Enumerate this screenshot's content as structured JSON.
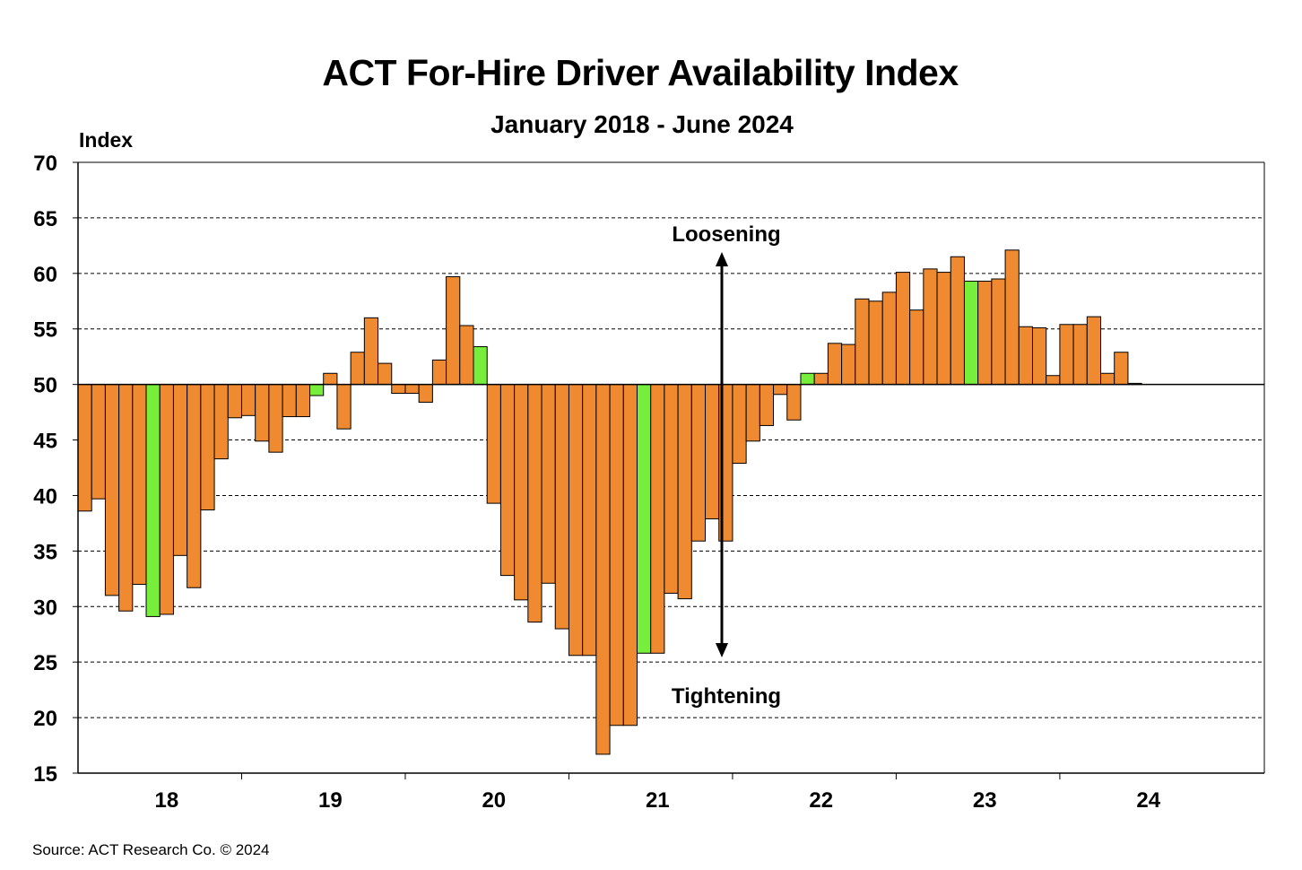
{
  "chart_data": {
    "type": "bar",
    "title": "ACT For-Hire Driver Availability Index",
    "subtitle": "January 2018 - June 2024",
    "ylabel": "Index",
    "ylim": [
      15,
      70
    ],
    "yticks": [
      15,
      20,
      25,
      30,
      35,
      40,
      45,
      50,
      55,
      60,
      65,
      70
    ],
    "baseline": 50,
    "xticks": [
      "18",
      "19",
      "20",
      "21",
      "22",
      "23",
      "24"
    ],
    "grid": true,
    "values": [
      38.6,
      39.7,
      31.0,
      29.6,
      32.0,
      29.1,
      29.3,
      34.6,
      31.7,
      38.7,
      43.3,
      47.0,
      47.2,
      44.9,
      43.9,
      47.1,
      47.1,
      49.0,
      51.0,
      46.0,
      52.9,
      56.0,
      51.9,
      49.2,
      49.2,
      48.4,
      52.2,
      59.7,
      55.3,
      53.4,
      39.3,
      32.8,
      30.6,
      28.6,
      32.1,
      28.0,
      25.6,
      25.6,
      16.7,
      19.3,
      19.3,
      25.8,
      25.8,
      31.2,
      30.7,
      35.9,
      37.9,
      35.9,
      42.9,
      44.9,
      46.3,
      49.1,
      46.8,
      51.0,
      51.0,
      53.7,
      53.6,
      57.7,
      57.5,
      58.3,
      60.1,
      56.7,
      60.4,
      60.1,
      61.5,
      59.3,
      59.3,
      59.5,
      62.1,
      55.2,
      55.1,
      50.8,
      55.4,
      55.4,
      56.1,
      51.0,
      52.9,
      50.1
    ],
    "highlight_indices": [
      5,
      17,
      29,
      41,
      53,
      65,
      77
    ],
    "colors": {
      "bar": "#F08A30",
      "highlight": "#77EE3C",
      "bar_edge": "#000000",
      "grid": "#000000",
      "arrow": "#000000"
    },
    "annotations": {
      "top": "Loosening",
      "bottom": "Tightening"
    }
  },
  "footer": {
    "source": "Source:  ACT Research Co. © 2024"
  }
}
